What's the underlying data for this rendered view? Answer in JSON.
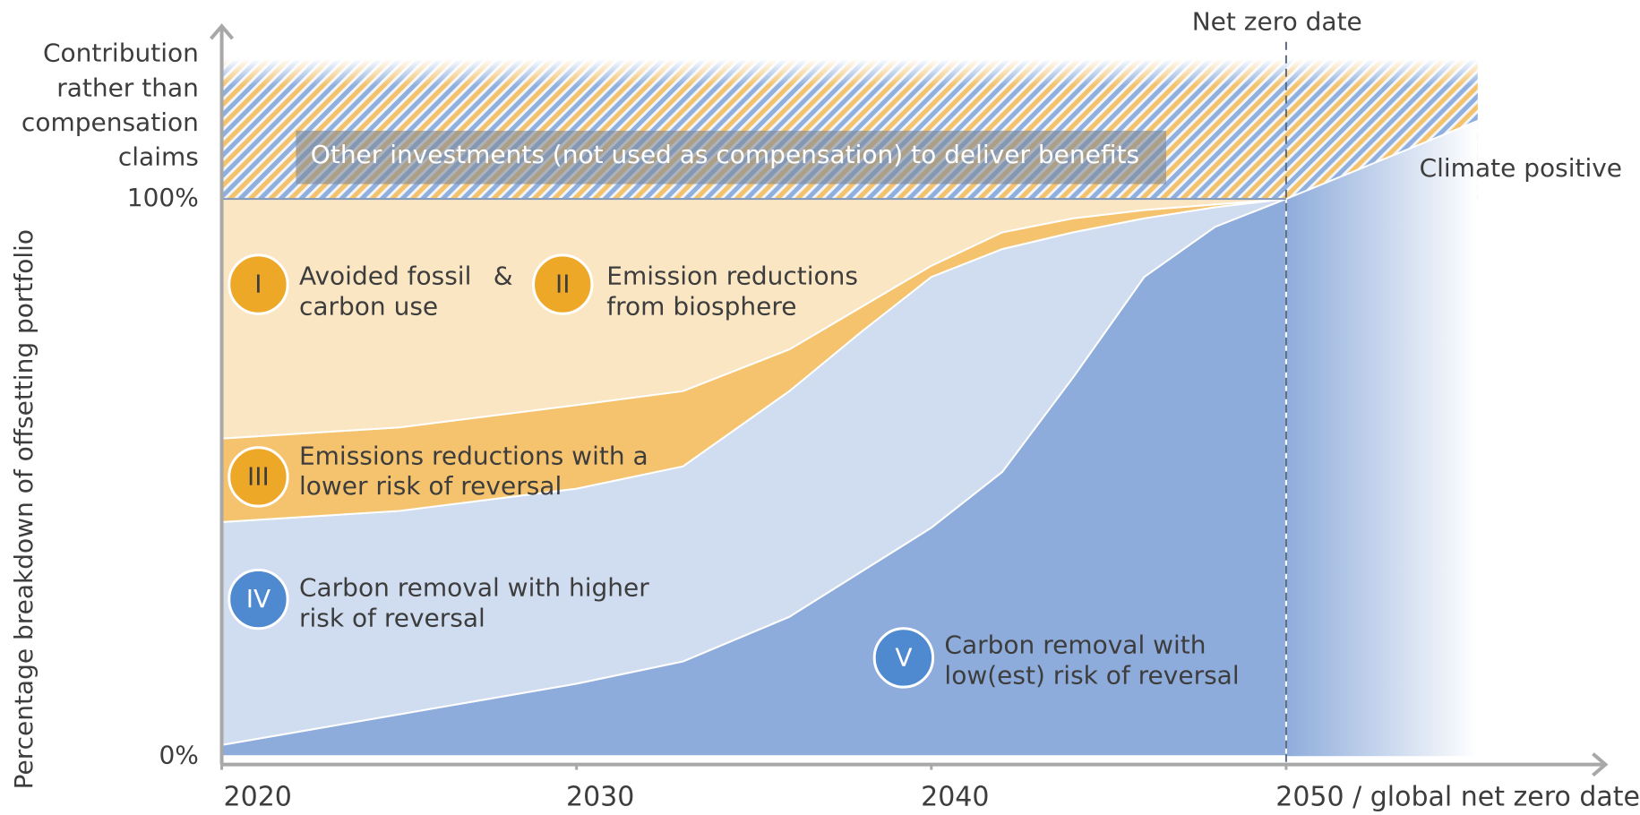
{
  "chart_data": {
    "type": "stacked_area",
    "y_axis_label": "Percentage breakdown of offsetting portfolio",
    "x": [
      2020,
      2025,
      2030,
      2033,
      2036,
      2038,
      2040,
      2042,
      2044,
      2046,
      2048,
      2050
    ],
    "series": [
      {
        "name": "Carbon removal with low(est) risk of reversal",
        "numeral": "V",
        "color": "#8eacdb",
        "values": [
          2,
          7.5,
          13,
          17,
          25,
          33,
          41,
          51,
          68,
          86,
          95,
          100
        ]
      },
      {
        "name": "Carbon removal with higher risk of reversal",
        "numeral": "IV",
        "color": "#d0dcf0",
        "values": [
          40,
          36.5,
          35,
          35,
          40.5,
          43,
          45,
          40,
          26,
          10.5,
          3.5,
          0
        ]
      },
      {
        "name": "Emissions reductions with a lower risk of reversal",
        "numeral": "III",
        "color": "#f5c36e",
        "values": [
          15,
          15,
          15,
          13.5,
          7.5,
          4.5,
          2,
          3,
          2.5,
          1.5,
          0.5,
          0
        ]
      },
      {
        "name": "Avoided fossil carbon use & Emission reductions from biosphere",
        "color": "#fbe6c3",
        "values": [
          43,
          41,
          37,
          34.5,
          27,
          19.5,
          12,
          6,
          3.5,
          2,
          1,
          0
        ]
      }
    ],
    "annotations": [
      {
        "numeral": "I",
        "lines": [
          "Avoided fossil",
          "carbon use"
        ]
      },
      {
        "numeral": "II",
        "lines": [
          "Emission reductions",
          "from biosphere"
        ]
      },
      {
        "numeral": "III",
        "lines": [
          "Emissions reductions with a",
          "lower risk of reversal"
        ]
      },
      {
        "numeral": "IV",
        "lines": [
          "Carbon removal with higher",
          "risk of reversal"
        ]
      },
      {
        "numeral": "V",
        "lines": [
          "Carbon removal with",
          "low(est) risk of reversal"
        ]
      }
    ],
    "ampersand": "&",
    "climate_positive": {
      "label": "Climate positive",
      "x": [
        2050,
        2055.4
      ],
      "values": [
        100,
        114
      ]
    },
    "contribution_band": {
      "label": "Other investments (not used as compensation) to deliver benefits",
      "side_label": [
        "Contribution",
        "rather than",
        "compensation",
        "claims"
      ],
      "range": [
        100,
        125
      ]
    },
    "net_zero": {
      "label": "Net zero date",
      "x": 2050
    },
    "xlim": [
      2020,
      2059
    ],
    "ylim": [
      -1.5,
      131
    ],
    "xticks": [
      2020,
      2030,
      2040,
      {
        "value": 2050,
        "label": "2050 / global net zero date"
      }
    ],
    "yticks": [
      {
        "value": 0,
        "label": "0%"
      },
      {
        "value": 100,
        "label": "100%"
      }
    ]
  }
}
